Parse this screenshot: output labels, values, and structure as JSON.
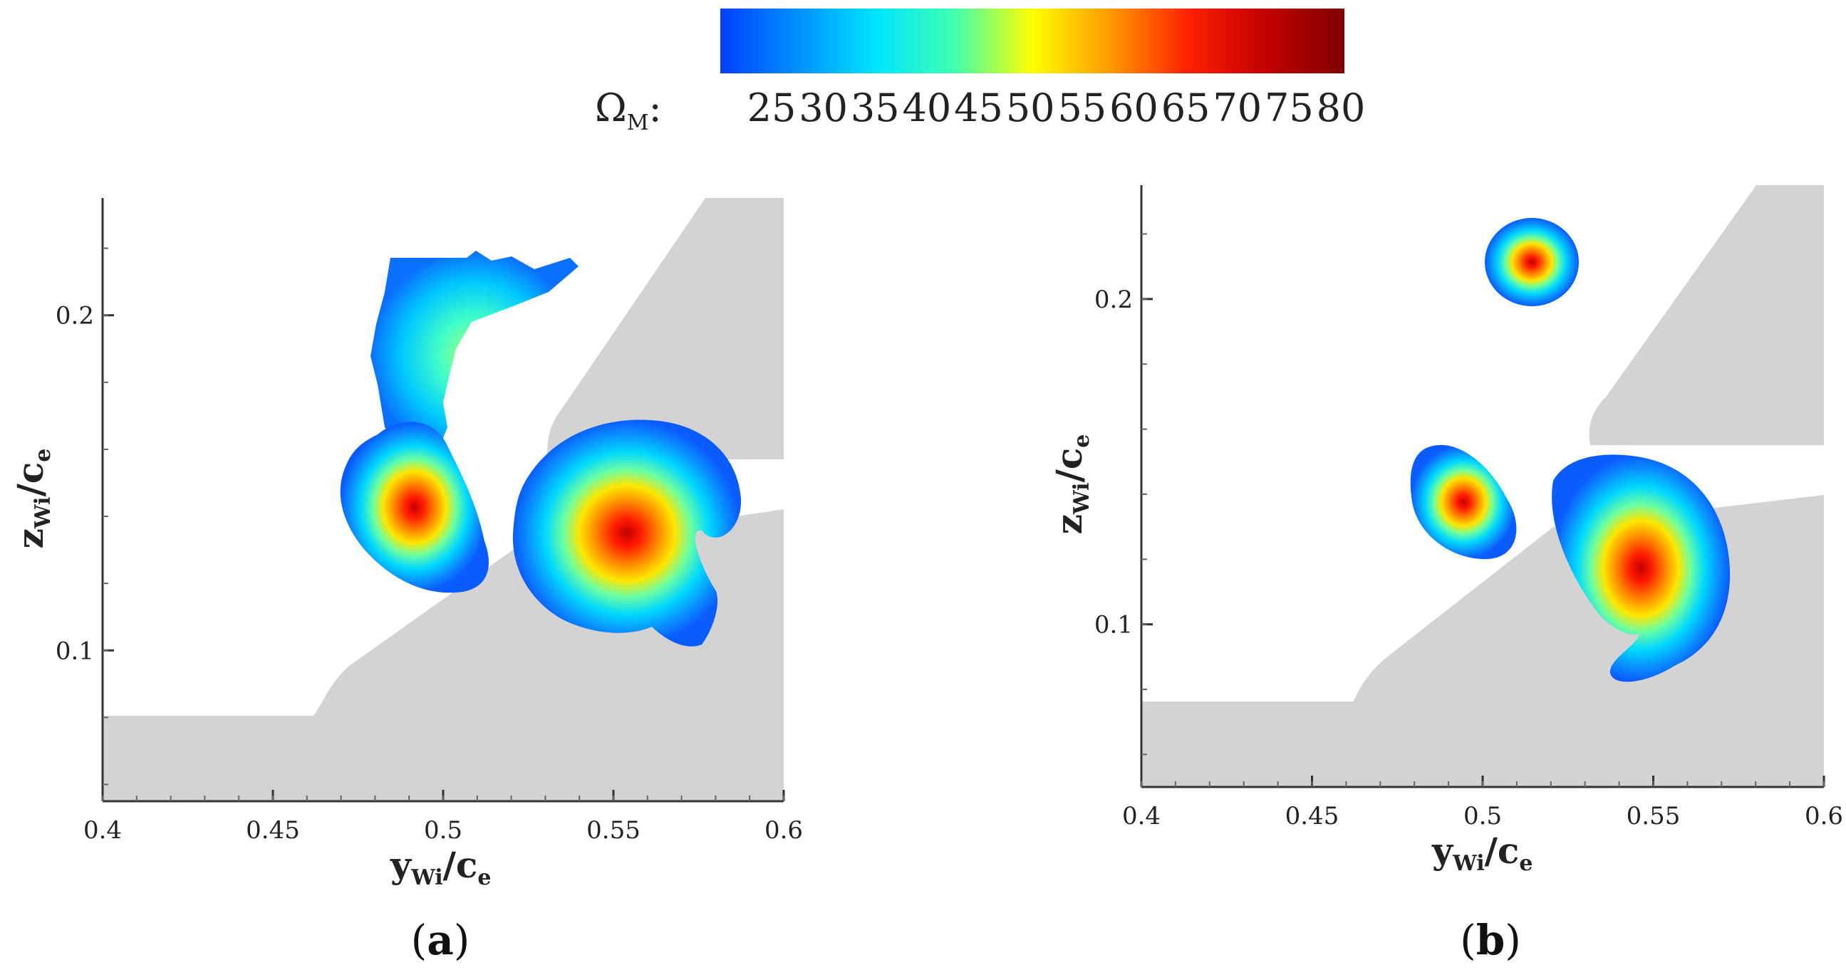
{
  "colors": {
    "geometry": "#d3d3d3",
    "axis": "#333333",
    "colormap": [
      "#0040ff",
      "#0090ff",
      "#00e5ff",
      "#40ffb0",
      "#ffff00",
      "#ff9a00",
      "#ff2000",
      "#c00000",
      "#800000"
    ]
  },
  "colorbar": {
    "label": "Ω",
    "label_sub": "M",
    "label_suffix": ":",
    "ticks": [
      "25",
      "30",
      "35",
      "40",
      "45",
      "50",
      "55",
      "60",
      "65",
      "70",
      "75",
      "80"
    ],
    "range": [
      25,
      80
    ]
  },
  "chart_data": [
    {
      "type": "heatmap",
      "panel_label": "a",
      "xlabel": "y",
      "xlabel_sub": "Wi",
      "xlabel_suffix": "/c",
      "xlabel_suffix_sub": "e",
      "ylabel": "z",
      "ylabel_sub": "Wi",
      "ylabel_suffix": "/c",
      "ylabel_suffix_sub": "e",
      "xlim": [
        0.4,
        0.6
      ],
      "ylim": [
        0.055,
        0.235
      ],
      "xticks": [
        "0.4",
        "0.45",
        "0.5",
        "0.55",
        "0.6"
      ],
      "yticks": [
        "0.1",
        "0.2"
      ],
      "vortices": [
        {
          "y": 0.489,
          "z": 0.132,
          "peak_omega": 68
        },
        {
          "y": 0.557,
          "z": 0.121,
          "peak_omega": 72
        },
        {
          "y": 0.499,
          "z": 0.191,
          "peak_omega": 45
        }
      ]
    },
    {
      "type": "heatmap",
      "panel_label": "b",
      "xlabel": "y",
      "xlabel_sub": "Wi",
      "xlabel_suffix": "/c",
      "xlabel_suffix_sub": "e",
      "ylabel": "z",
      "ylabel_sub": "Wi",
      "ylabel_suffix": "/c",
      "ylabel_suffix_sub": "e",
      "xlim": [
        0.4,
        0.6
      ],
      "ylim": [
        0.05,
        0.235
      ],
      "xticks": [
        "0.4",
        "0.45",
        "0.5",
        "0.55",
        "0.6"
      ],
      "yticks": [
        "0.1",
        "0.2"
      ],
      "vortices": [
        {
          "y": 0.515,
          "z": 0.209,
          "peak_omega": 75
        },
        {
          "y": 0.495,
          "z": 0.134,
          "peak_omega": 72
        },
        {
          "y": 0.546,
          "z": 0.117,
          "peak_omega": 74
        }
      ]
    }
  ]
}
